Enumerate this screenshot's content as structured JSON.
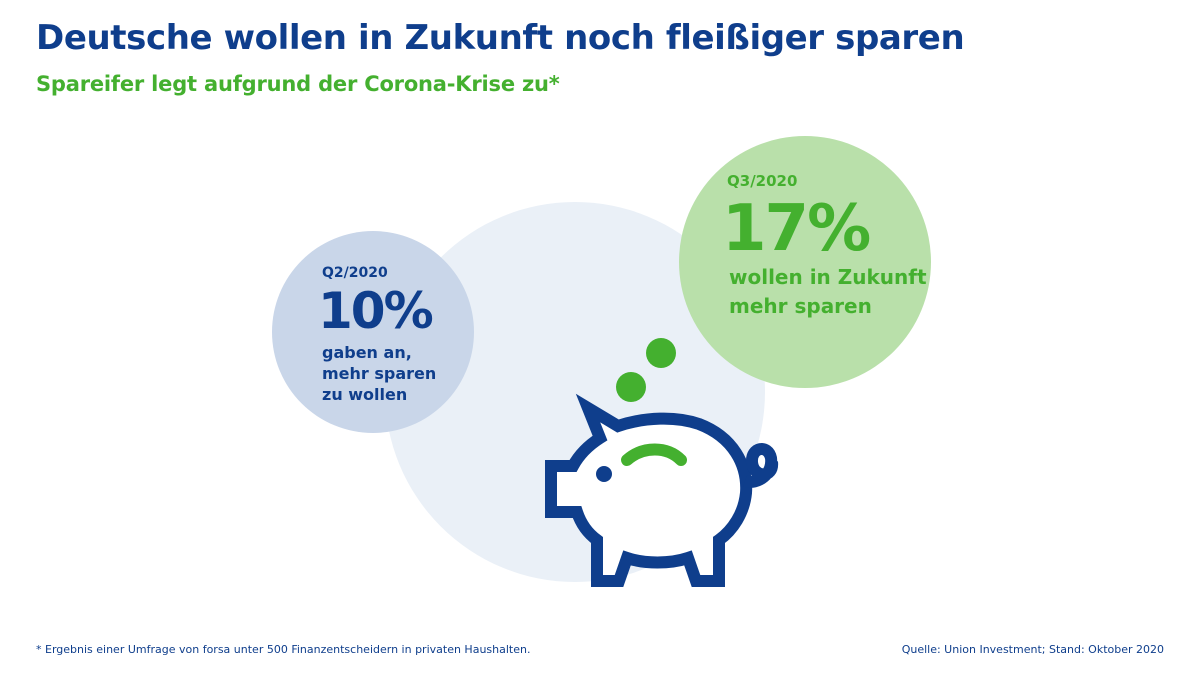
{
  "header": {
    "title": "Deutsche wollen in Zukunft noch fleißiger sparen",
    "subtitle": "Spareifer legt aufgrund der Corona-Krise zu*"
  },
  "chart_data": {
    "type": "bubble",
    "unit": "%",
    "series": [
      {
        "period": "Q2/2020",
        "value": 10,
        "value_label": "10%",
        "caption_lines": [
          "gaben an,",
          "mehr sparen",
          "zu wollen"
        ],
        "circle_color": "#c9d6e9",
        "text_color": "#0f3e8c"
      },
      {
        "period": "Q3/2020",
        "value": 17,
        "value_label": "17%",
        "caption_lines": [
          "wollen in Zukunft",
          "mehr sparen"
        ],
        "circle_color": "#b9e0aa",
        "text_color": "#44b02f"
      }
    ]
  },
  "illustration": {
    "icon": "piggy-bank-icon",
    "coins": 2,
    "background_circle_color": "#eaf0f7",
    "outline_color": "#0f3e8c",
    "accent_color": "#44b02f"
  },
  "footer": {
    "footnote": "* Ergebnis einer Umfrage von forsa unter 500 Finanzentscheidern in privaten Haushalten.",
    "source": "Quelle: Union Investment; Stand: Oktober 2020"
  }
}
